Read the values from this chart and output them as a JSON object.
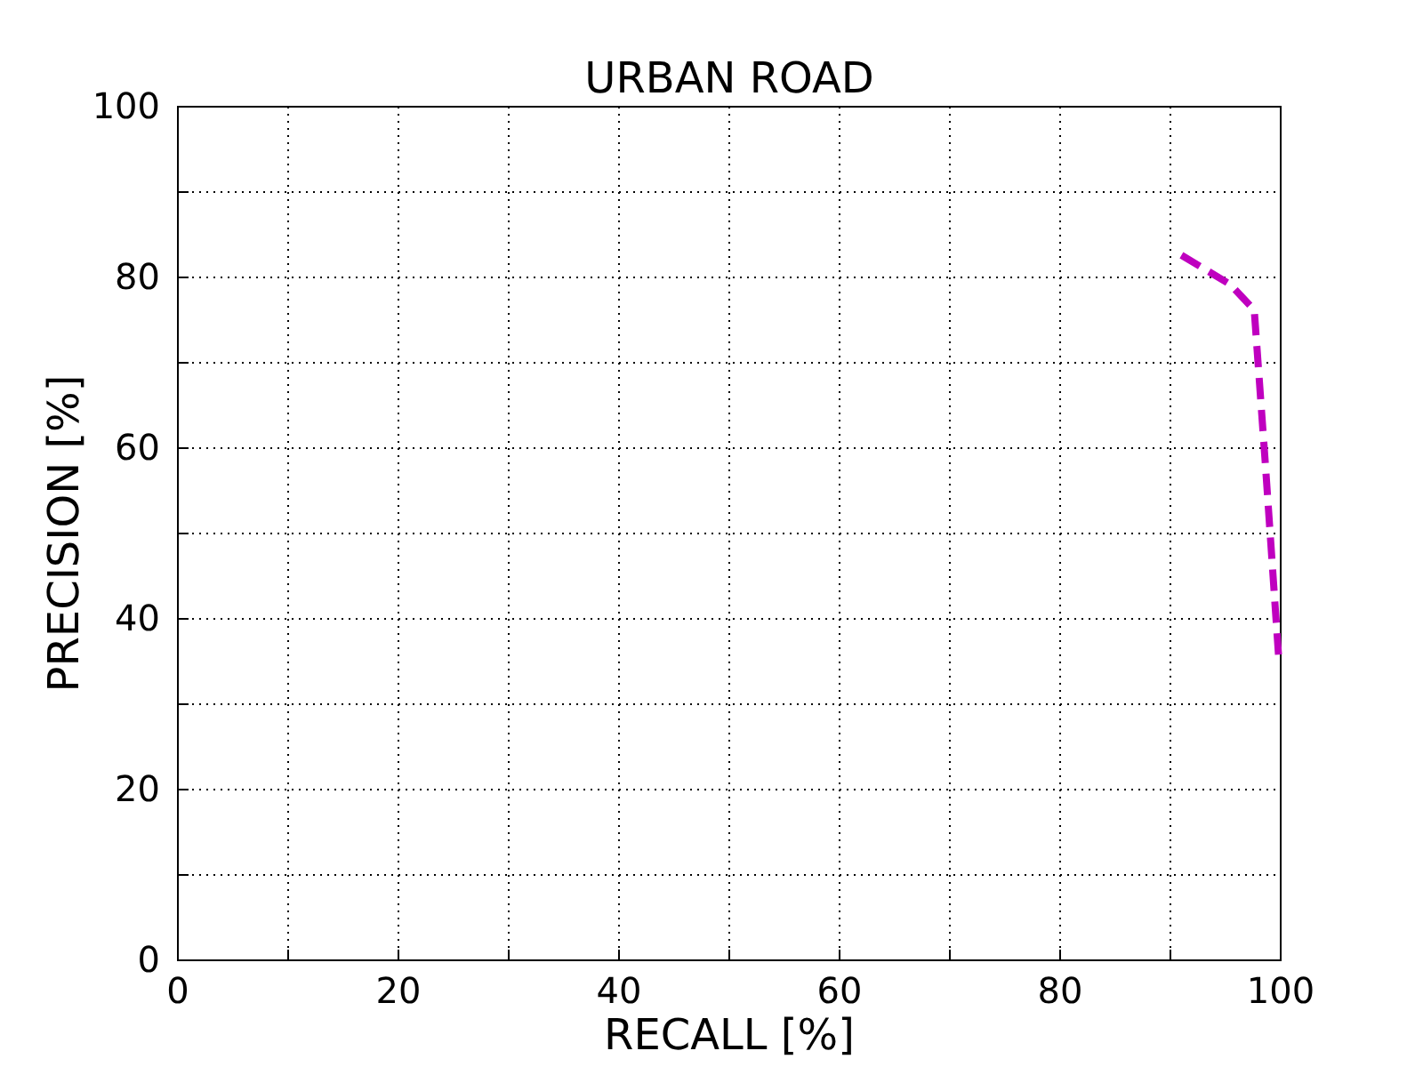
{
  "chart_data": {
    "type": "line",
    "title": "URBAN ROAD",
    "xlabel": "RECALL [%]",
    "ylabel": "PRECISION [%]",
    "x": [
      91.0,
      95.4,
      97.6,
      98.6,
      99.8
    ],
    "series": [
      {
        "color": "#bf00bf",
        "values": [
          82.6,
          79.2,
          76.2,
          58.3,
          35.8
        ]
      }
    ],
    "xlim": [
      0,
      100
    ],
    "ylim": [
      0,
      100
    ],
    "xticks": [
      0,
      {
        "value": 10,
        "label": null
      },
      20,
      {
        "value": 30,
        "label": null
      },
      40,
      {
        "value": 50,
        "label": null
      },
      60,
      {
        "value": 70,
        "label": null
      },
      80,
      {
        "value": 90,
        "label": null
      },
      100
    ],
    "yticks": [
      0,
      {
        "value": 10,
        "label": null
      },
      20,
      {
        "value": 30,
        "label": null
      },
      40,
      {
        "value": 50,
        "label": null
      },
      60,
      {
        "value": 70,
        "label": null
      },
      80,
      {
        "value": 90,
        "label": null
      },
      100
    ],
    "grid": true,
    "marker": "none",
    "line_style": "dashed"
  }
}
